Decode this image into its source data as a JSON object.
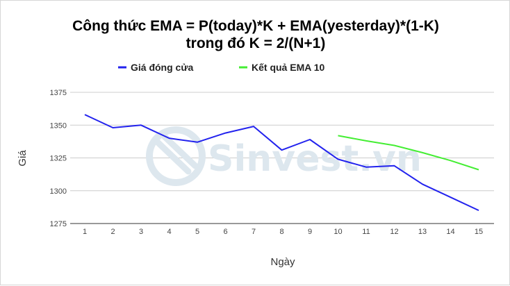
{
  "chart_data": {
    "type": "line",
    "title_lines": [
      "Công thức EMA = P(today)*K + EMA(yesterday)*(1-K)",
      "trong đó K = 2/(N+1)"
    ],
    "xlabel": "Ngày",
    "ylabel": "Giá",
    "x": [
      1,
      2,
      3,
      4,
      5,
      6,
      7,
      8,
      9,
      10,
      11,
      12,
      13,
      14,
      15
    ],
    "y_ticks": [
      1275,
      1300,
      1325,
      1350,
      1375
    ],
    "ylim": [
      1275,
      1375
    ],
    "grid": true,
    "legend_position": "top",
    "series": [
      {
        "name": "Giá đóng cửa",
        "color": "#2222ee",
        "values": [
          1358,
          1348,
          1350,
          1340,
          1337,
          1344,
          1349,
          1331,
          1339,
          1324,
          1318,
          1319,
          1305,
          1295,
          1285
        ]
      },
      {
        "name": "Kết quả EMA 10",
        "color": "#44ee33",
        "values": [
          null,
          null,
          null,
          null,
          null,
          null,
          null,
          null,
          null,
          1342,
          1338,
          1334.5,
          1329,
          1323,
          1316
        ]
      }
    ]
  },
  "watermark": {
    "text": "Sinvest.vn",
    "icon": "sinvest-logo-icon",
    "color": "#dde7ee"
  }
}
